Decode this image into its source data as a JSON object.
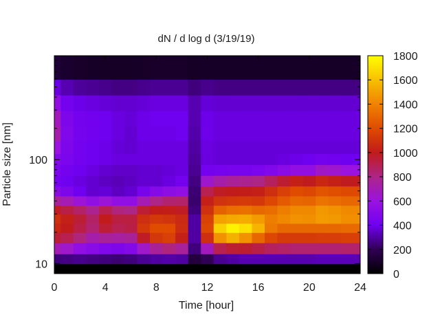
{
  "chart_data": {
    "type": "heatmap",
    "title": "dN / d log d (3/19/19)",
    "xlabel": "Time [hour]",
    "ylabel": "Particle size [nm]",
    "xlim": [
      0,
      24
    ],
    "ylim": [
      8,
      1000
    ],
    "y_scale": "log",
    "x_ticks": [
      0,
      4,
      8,
      12,
      16,
      20,
      24
    ],
    "y_ticks": [
      10,
      100
    ],
    "colorbar": {
      "range": [
        0,
        1800
      ],
      "ticks": [
        0,
        200,
        400,
        600,
        800,
        1000,
        1200,
        1400,
        1600,
        1800
      ]
    },
    "x": [
      0,
      1,
      2,
      3,
      4,
      5,
      6,
      7,
      8,
      9,
      10,
      11,
      12,
      13,
      14,
      15,
      16,
      17,
      18,
      19,
      20,
      21,
      22,
      23,
      24
    ],
    "y": [
      9,
      11,
      14,
      18,
      22,
      27,
      33,
      40,
      50,
      62,
      80,
      100,
      130,
      180,
      250,
      350,
      500,
      700
    ],
    "z": [
      [
        0,
        0,
        0,
        0,
        0,
        0,
        0,
        0,
        0,
        0,
        0,
        0,
        0,
        0,
        0,
        0,
        0,
        0,
        0,
        0,
        0,
        0,
        0,
        0,
        0
      ],
      [
        250,
        260,
        270,
        260,
        250,
        240,
        250,
        280,
        300,
        310,
        300,
        150,
        200,
        280,
        300,
        320,
        320,
        320,
        320,
        320,
        320,
        330,
        330,
        330,
        330
      ],
      [
        700,
        650,
        560,
        520,
        480,
        460,
        490,
        650,
        760,
        820,
        760,
        250,
        680,
        900,
        950,
        960,
        920,
        880,
        860,
        840,
        840,
        840,
        840,
        850,
        850
      ],
      [
        950,
        900,
        820,
        720,
        760,
        740,
        760,
        980,
        1120,
        1150,
        1020,
        300,
        1080,
        1450,
        1550,
        1450,
        1300,
        1180,
        1130,
        1130,
        1130,
        1140,
        1140,
        1150,
        1150
      ],
      [
        1050,
        1000,
        920,
        840,
        950,
        900,
        920,
        1120,
        1200,
        1200,
        1070,
        300,
        1180,
        1650,
        1760,
        1700,
        1560,
        1360,
        1300,
        1300,
        1300,
        1300,
        1300,
        1310,
        1310
      ],
      [
        1080,
        1020,
        950,
        860,
        1000,
        930,
        930,
        1080,
        1120,
        1100,
        1060,
        300,
        1160,
        1500,
        1520,
        1530,
        1480,
        1380,
        1420,
        1450,
        1440,
        1480,
        1470,
        1440,
        1440
      ],
      [
        980,
        920,
        860,
        780,
        900,
        820,
        800,
        950,
        1000,
        1010,
        980,
        250,
        1090,
        1280,
        1320,
        1330,
        1300,
        1320,
        1380,
        1420,
        1420,
        1470,
        1450,
        1420,
        1420
      ],
      [
        760,
        700,
        620,
        560,
        620,
        560,
        560,
        700,
        800,
        840,
        850,
        230,
        1020,
        1100,
        1120,
        1130,
        1120,
        1180,
        1250,
        1300,
        1290,
        1340,
        1320,
        1300,
        1300
      ],
      [
        520,
        460,
        400,
        360,
        370,
        340,
        360,
        440,
        500,
        540,
        560,
        240,
        900,
        980,
        1000,
        1010,
        1020,
        1080,
        1150,
        1200,
        1180,
        1230,
        1210,
        1190,
        1190
      ],
      [
        440,
        400,
        380,
        360,
        340,
        330,
        340,
        360,
        360,
        380,
        420,
        260,
        640,
        720,
        760,
        780,
        800,
        880,
        960,
        1020,
        990,
        1050,
        1020,
        990,
        990
      ],
      [
        460,
        420,
        400,
        380,
        360,
        350,
        350,
        360,
        360,
        370,
        380,
        280,
        420,
        430,
        440,
        440,
        450,
        480,
        520,
        560,
        560,
        660,
        640,
        600,
        600
      ],
      [
        500,
        450,
        420,
        400,
        390,
        380,
        380,
        380,
        380,
        380,
        380,
        290,
        380,
        370,
        370,
        370,
        370,
        370,
        380,
        390,
        400,
        420,
        410,
        400,
        400
      ],
      [
        600,
        460,
        420,
        400,
        390,
        370,
        360,
        380,
        380,
        380,
        380,
        300,
        380,
        370,
        370,
        370,
        370,
        370,
        370,
        370,
        370,
        370,
        370,
        370,
        370
      ],
      [
        720,
        480,
        430,
        410,
        400,
        380,
        360,
        390,
        390,
        390,
        400,
        310,
        390,
        380,
        380,
        380,
        380,
        380,
        380,
        380,
        380,
        380,
        380,
        380,
        380
      ],
      [
        680,
        460,
        420,
        410,
        400,
        380,
        370,
        390,
        400,
        400,
        400,
        320,
        390,
        380,
        380,
        380,
        380,
        380,
        380,
        380,
        380,
        380,
        380,
        380,
        380
      ],
      [
        560,
        420,
        390,
        380,
        370,
        360,
        360,
        370,
        380,
        380,
        380,
        320,
        370,
        360,
        360,
        360,
        360,
        360,
        360,
        360,
        360,
        360,
        360,
        360,
        360
      ],
      [
        380,
        320,
        290,
        280,
        270,
        260,
        260,
        270,
        280,
        280,
        280,
        250,
        270,
        260,
        260,
        260,
        260,
        260,
        260,
        260,
        260,
        260,
        260,
        260,
        260
      ],
      [
        130,
        110,
        100,
        95,
        90,
        90,
        90,
        95,
        100,
        100,
        100,
        90,
        95,
        95,
        95,
        95,
        95,
        95,
        95,
        95,
        95,
        95,
        95,
        95,
        95
      ]
    ]
  }
}
